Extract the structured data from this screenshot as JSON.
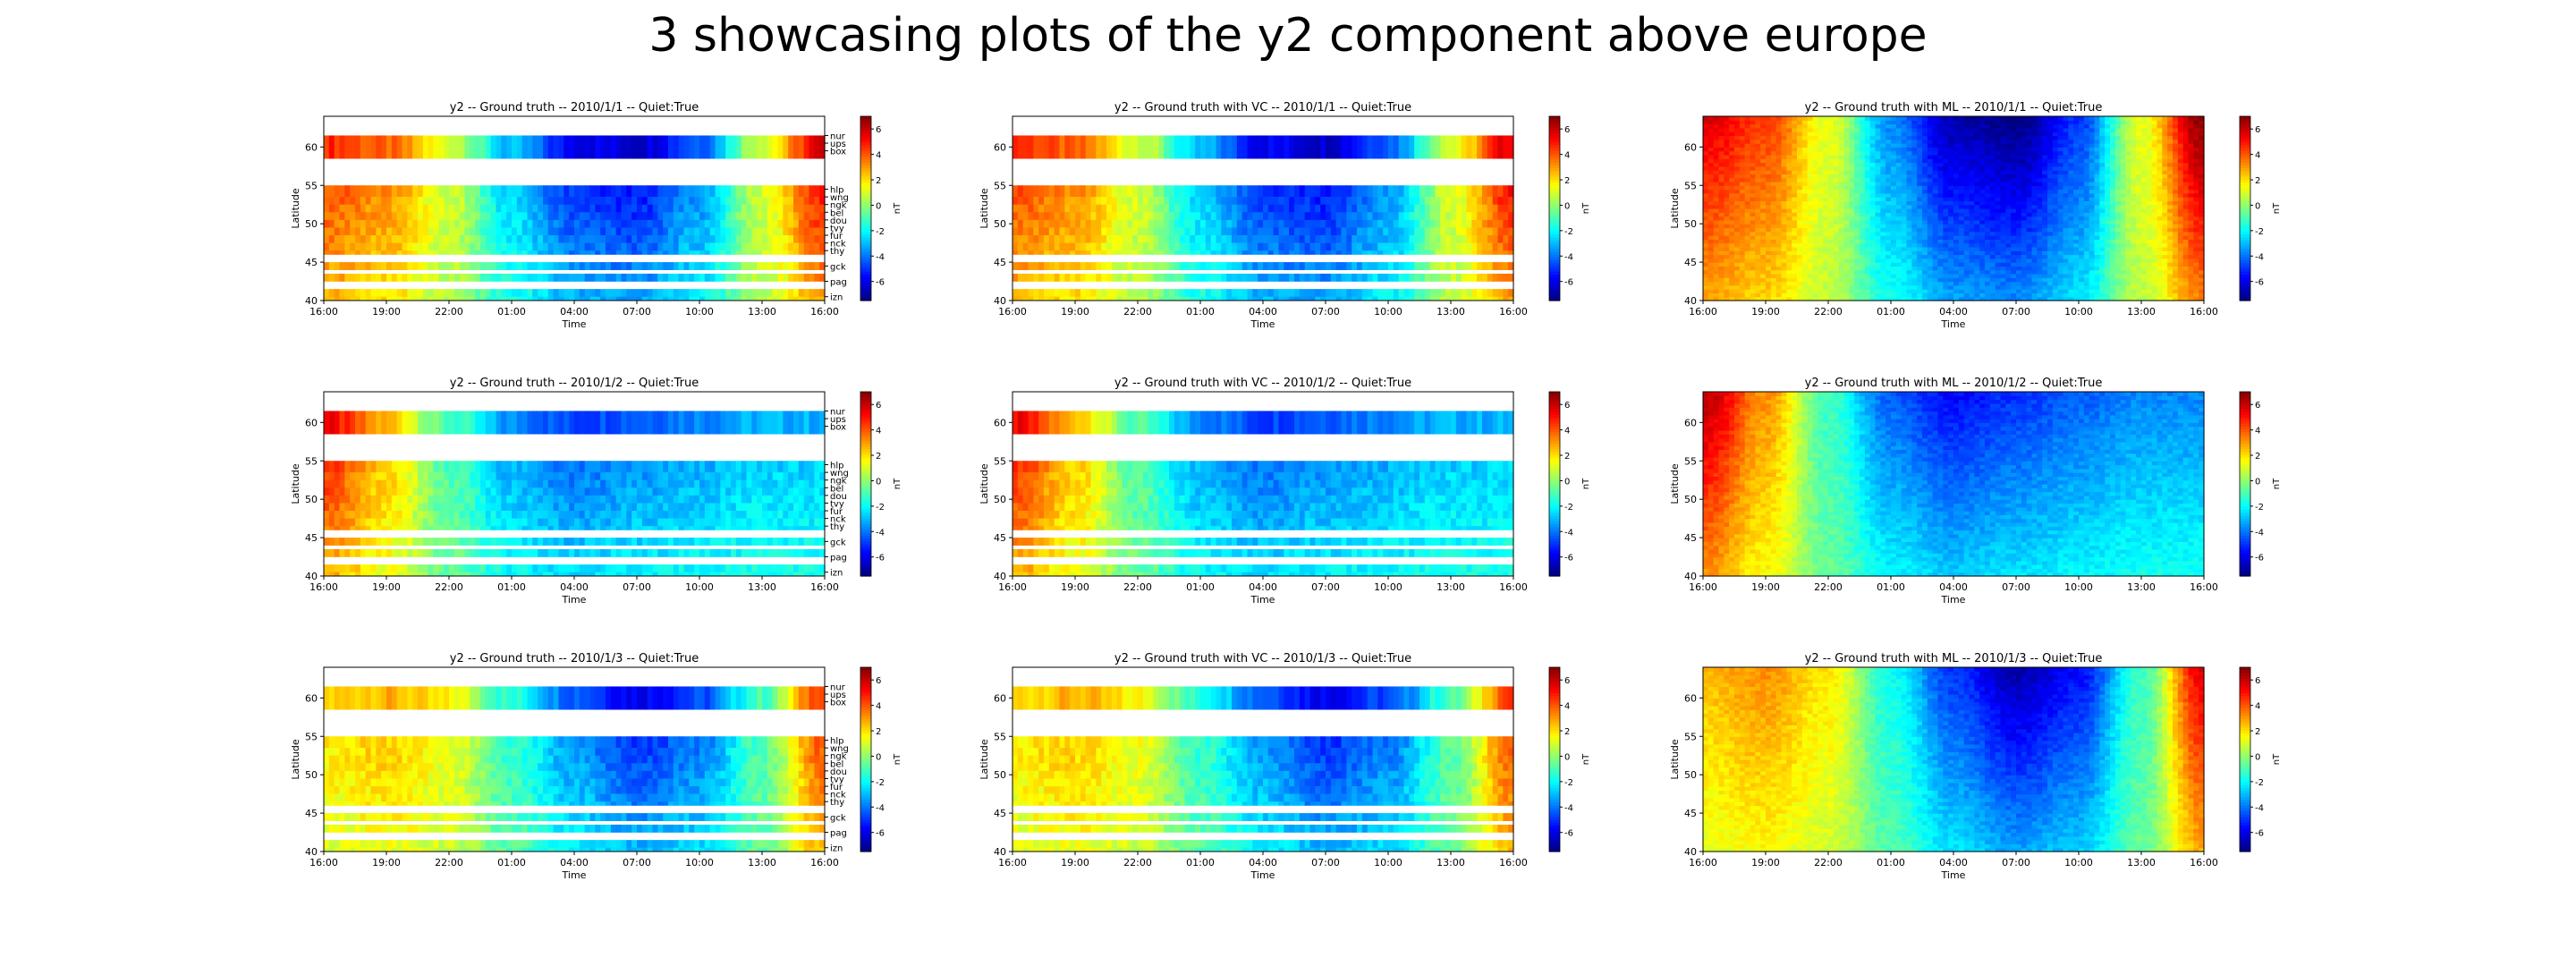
{
  "figure": {
    "suptitle": "3 showcasing plots of the y2 component above europe"
  },
  "chart_data": {
    "type": "heatmap",
    "component": "y2",
    "xlabel": "Time",
    "ylabel": "Latitude",
    "colorbar_label": "nT",
    "x_ticks": [
      "16:00",
      "19:00",
      "22:00",
      "01:00",
      "04:00",
      "07:00",
      "10:00",
      "13:00",
      "16:00"
    ],
    "y_ticks": [
      40,
      45,
      50,
      55,
      60
    ],
    "ylim": [
      40,
      64
    ],
    "clim": [
      -7.5,
      7
    ],
    "colorbar_ticks": [
      6,
      4,
      2,
      0,
      -2,
      -4,
      -6
    ],
    "colormap": "jet",
    "station_labels": [
      {
        "name": "nur",
        "lat": 61.5
      },
      {
        "name": "ups",
        "lat": 60.5
      },
      {
        "name": "box",
        "lat": 59.5
      },
      {
        "name": "hlp",
        "lat": 54.5
      },
      {
        "name": "wng",
        "lat": 53.5
      },
      {
        "name": "ngk",
        "lat": 52.5
      },
      {
        "name": "bel",
        "lat": 51.5
      },
      {
        "name": "dou",
        "lat": 50.5
      },
      {
        "name": "tvy",
        "lat": 49.5
      },
      {
        "name": "fur",
        "lat": 48.5
      },
      {
        "name": "nck",
        "lat": 47.5
      },
      {
        "name": "thy",
        "lat": 46.5
      },
      {
        "name": "gck",
        "lat": 44.5
      },
      {
        "name": "pag",
        "lat": 42.5
      },
      {
        "name": "izn",
        "lat": 40.5
      }
    ],
    "panels": [
      {
        "title": "y2 -- Ground truth -- 2010/1/1 -- Quiet:True",
        "kind": "gt",
        "day": 1,
        "show_stations": true
      },
      {
        "title": "y2 -- Ground truth with VC -- 2010/1/1 -- Quiet:True",
        "kind": "vc",
        "day": 1,
        "show_stations": false
      },
      {
        "title": "y2 -- Ground truth with ML -- 2010/1/1 -- Quiet:True",
        "kind": "ml",
        "day": 1,
        "show_stations": false
      },
      {
        "title": "y2 -- Ground truth -- 2010/1/2 -- Quiet:True",
        "kind": "gt",
        "day": 2,
        "show_stations": true
      },
      {
        "title": "y2 -- Ground truth with VC -- 2010/1/2 -- Quiet:True",
        "kind": "vc",
        "day": 2,
        "show_stations": false
      },
      {
        "title": "y2 -- Ground truth with ML -- 2010/1/2 -- Quiet:True",
        "kind": "ml",
        "day": 2,
        "show_stations": false
      },
      {
        "title": "y2 -- Ground truth -- 2010/1/3 -- Quiet:True",
        "kind": "gt",
        "day": 3,
        "show_stations": true
      },
      {
        "title": "y2 -- Ground truth with VC -- 2010/1/3 -- Quiet:True",
        "kind": "vc",
        "day": 3,
        "show_stations": false
      },
      {
        "title": "y2 -- Ground truth with ML -- 2010/1/3 -- Quiet:True",
        "kind": "ml",
        "day": 3,
        "show_stations": false
      }
    ],
    "data_rows": [
      [
        61.5,
        58.5
      ],
      [
        58.5,
        55.0
      ],
      [
        55.0,
        53.5
      ],
      [
        53.5,
        52.5
      ],
      [
        52.5,
        51.5
      ],
      [
        51.5,
        50.5
      ],
      [
        50.5,
        49.5
      ],
      [
        49.5,
        48.5
      ],
      [
        48.5,
        47.5
      ],
      [
        47.5,
        46.5
      ],
      [
        46.5,
        46.0
      ],
      [
        45.0,
        44.0
      ],
      [
        43.5,
        42.5
      ],
      [
        41.5,
        40.5
      ],
      [
        40.5,
        40.0
      ]
    ],
    "gap_rows": [
      [
        58.5,
        55.0
      ]
    ],
    "daily_profiles": {
      "description": "approx y2 (nT) vs time-of-day at samples 16:00,19:00,22:00,01:00,04:00,07:00,10:00,13:00,16:00",
      "day1": [
        4.5,
        3.5,
        1.0,
        -3.0,
        -5.5,
        -6.0,
        -4.0,
        1.0,
        5.5
      ],
      "day2": [
        5.0,
        2.5,
        -1.0,
        -3.5,
        -4.5,
        -4.0,
        -3.5,
        -3.0,
        -3.0
      ],
      "day3": [
        2.0,
        2.5,
        1.5,
        -1.5,
        -4.0,
        -5.5,
        -4.5,
        -1.0,
        4.5
      ]
    }
  }
}
